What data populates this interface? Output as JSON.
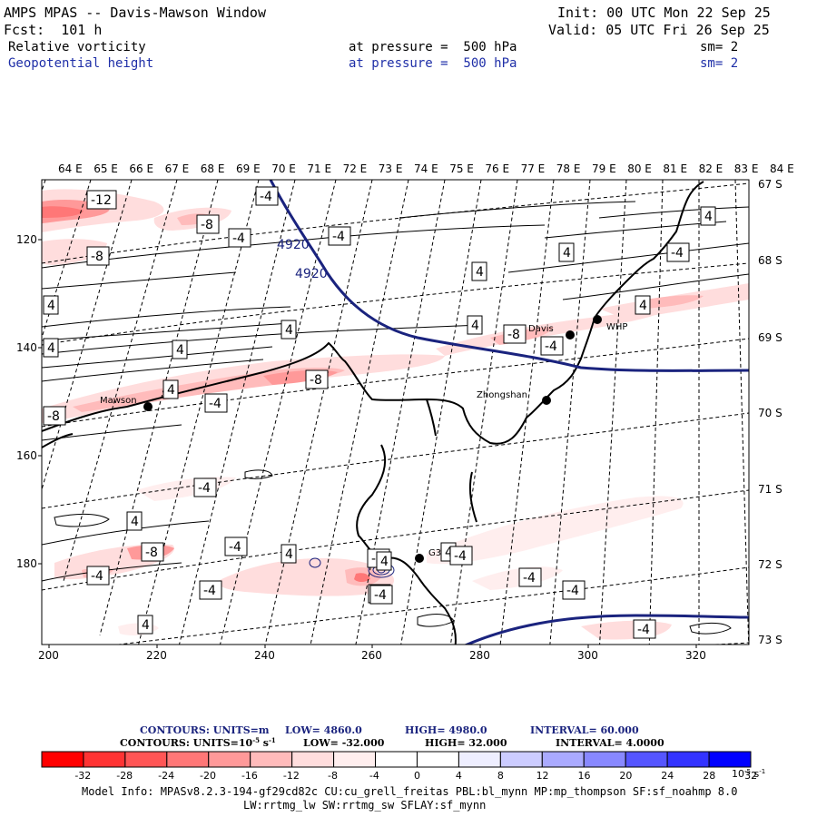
{
  "header": {
    "title": "AMPS MPAS -- Davis-Mawson Window",
    "fcst": "Fcst:  101 h",
    "init": "Init: 00 UTC Mon 22 Sep 25",
    "valid": "Valid: 05 UTC Fri 26 Sep 25",
    "field1": {
      "name": "Relative vorticity",
      "pressure": "at pressure =  500 hPa",
      "sm": "sm= 2"
    },
    "field2": {
      "name": "Geopotential height",
      "pressure": "at pressure =  500 hPa",
      "sm": "sm= 2"
    }
  },
  "map": {
    "lon_labels": [
      "64 E",
      "65 E",
      "66 E",
      "67 E",
      "68 E",
      "69 E",
      "70 E",
      "71 E",
      "72 E",
      "73 E",
      "74 E",
      "75 E",
      "76 E",
      "77 E",
      "78 E",
      "79 E",
      "80 E",
      "81 E",
      "82 E",
      "83 E",
      "84 E"
    ],
    "lat_labels": [
      "67 S",
      "68 S",
      "69 S",
      "70 S",
      "71 S",
      "72 S",
      "73 S"
    ],
    "x_ticks": [
      "200",
      "220",
      "240",
      "260",
      "280",
      "300",
      "320"
    ],
    "y_ticks": [
      "120",
      "140",
      "160",
      "180"
    ],
    "stations": [
      {
        "name": "Mawson"
      },
      {
        "name": "Davis"
      },
      {
        "name": "Zhongshan"
      },
      {
        "name": "WHP"
      },
      {
        "name": "G3"
      }
    ],
    "height_labels": [
      "4920",
      "4920"
    ],
    "vort_labels": [
      "-12",
      "-8",
      "-4",
      "-8",
      "-4",
      "-4",
      "4",
      "4",
      "-8",
      "4",
      "4",
      "4",
      "4",
      "-4",
      "4",
      "4",
      "-8",
      "4",
      "4",
      "-8",
      "-4",
      "-4",
      "4",
      "-8",
      "-4",
      "4",
      "-4",
      "-4",
      "-4",
      "-4",
      "4",
      "-8",
      "-4",
      "-4",
      "-4",
      "-4",
      "4",
      "-4",
      "4"
    ]
  },
  "legend": {
    "line1": {
      "contours": "CONTOURS:  UNITS=m",
      "low": "LOW=   4860.0",
      "high": "HIGH=  4980.0",
      "interval": "INTERVAL=   60.000"
    },
    "line2": {
      "contours": "CONTOURS:  UNITS=10",
      "units_exp": "-5",
      "units_tail": " s",
      "units_exp2": "-1",
      "low": "LOW=  -32.000",
      "high": "HIGH=  32.000",
      "interval": "INTERVAL=   4.0000"
    },
    "colorbar_labels": [
      "-32",
      "-28",
      "-24",
      "-20",
      "-16",
      "-12",
      "-8",
      "-4",
      "0",
      "4",
      "8",
      "12",
      "16",
      "20",
      "24",
      "28",
      "32"
    ],
    "colorbar_units": "10",
    "colorbar_units_exp": "-5",
    "colorbar_units_tail": " s",
    "colorbar_units_exp2": "-1",
    "colors": [
      "#ff0000",
      "#ff3333",
      "#ff5555",
      "#ff7777",
      "#ff9999",
      "#ffbbbb",
      "#ffdddd",
      "#ffeeee",
      "#ffffff",
      "#ffffff",
      "#eeeeff",
      "#ccccff",
      "#aaaaff",
      "#8888ff",
      "#5555ff",
      "#3333ff",
      "#0000ff"
    ]
  },
  "footer": {
    "line1": "Model Info: MPASv8.2.3-194-gf29cd82c CU:cu_grell_freitas PBL:bl_mynn MP:mp_thompson SF:sf_noahmp 8.0",
    "line2": "LW:rrtmg_lw SW:rrtmg_sw SFLAY:sf_mynn"
  }
}
